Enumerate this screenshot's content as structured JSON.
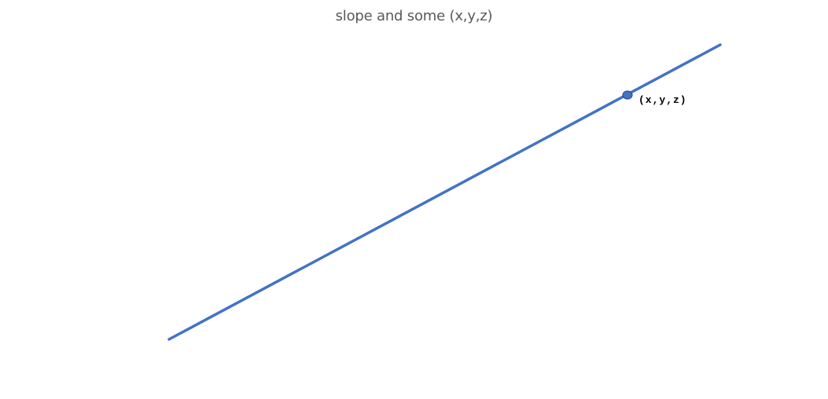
{
  "title": "slope and some (x,y,z)",
  "line": {
    "color": "#4472C4"
  },
  "point": {
    "label": "(x,y,z)",
    "fill": "#4472C4",
    "stroke": "#2F528F"
  }
}
